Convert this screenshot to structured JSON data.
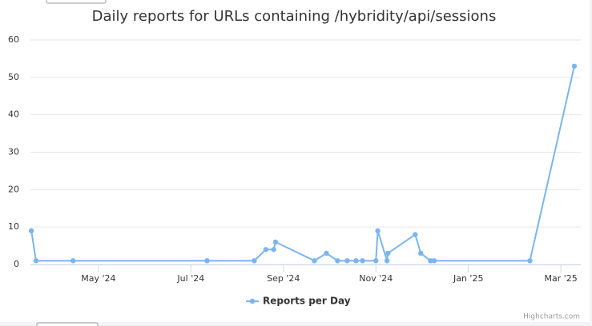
{
  "chart_data": {
    "type": "line",
    "title": "Daily reports for URLs containing /hybridity/api/sessions",
    "credits": "Highcharts.com",
    "x": [
      2.55,
      2.65,
      3.45,
      6.35,
      7.37,
      7.62,
      7.79,
      7.83,
      8.67,
      8.93,
      9.17,
      9.38,
      9.57,
      9.71,
      10.0,
      10.04,
      10.24,
      10.26,
      10.85,
      10.97,
      11.18,
      11.26,
      13.33,
      14.29
    ],
    "series": [
      {
        "name": "Reports per Day",
        "color": "#7cb5ec",
        "values": [
          9,
          1,
          1,
          1,
          1,
          4,
          4,
          6,
          1,
          3,
          1,
          1,
          1,
          1,
          1,
          9,
          1,
          3,
          8,
          3,
          1,
          1,
          1,
          53
        ]
      }
    ],
    "xlim": [
      2.53,
      14.43
    ],
    "xticks": [
      {
        "value": 4,
        "label": "May '24"
      },
      {
        "value": 6,
        "label": "Jul '24"
      },
      {
        "value": 8,
        "label": "Sep '24"
      },
      {
        "value": 10,
        "label": "Nov '24"
      },
      {
        "value": 12,
        "label": "Jan '25"
      },
      {
        "value": 14,
        "label": "Mar '25"
      }
    ],
    "ylim": [
      0,
      60
    ],
    "yticks": [
      0,
      10,
      20,
      30,
      40,
      50,
      60
    ],
    "grid": true
  }
}
